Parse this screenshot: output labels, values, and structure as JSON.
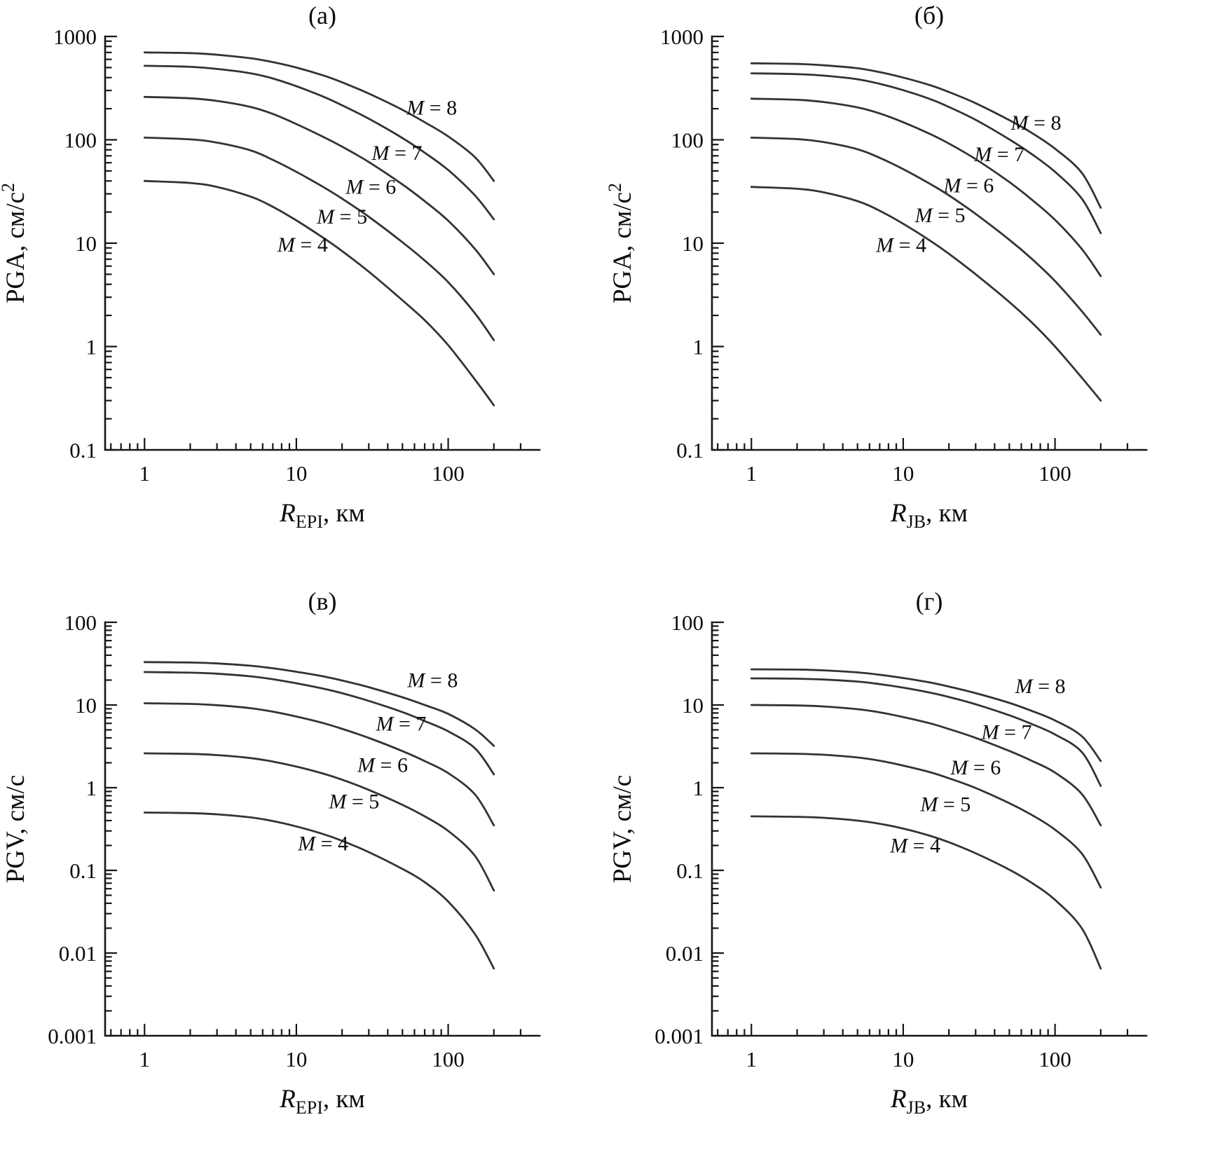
{
  "figure": {
    "background": "#ffffff",
    "axis_color": "#161616",
    "curve_color": "#333333",
    "text_color": "#0c0c0c"
  },
  "chart_data": [
    {
      "id": "a",
      "type": "line",
      "title": "(а)",
      "x_scale": "log",
      "y_scale": "log",
      "grid": false,
      "x_range": [
        0.55,
        400
      ],
      "y_range": [
        0.1,
        1000
      ],
      "x_major_ticks": [
        1,
        10,
        100
      ],
      "y_major_ticks": [
        0.1,
        1,
        10,
        100,
        1000
      ],
      "xlabel": {
        "var": "R",
        "sub": "EPI",
        "rest": ", км"
      },
      "ylabel": {
        "base": "PGA, см/с",
        "sup": "2"
      },
      "x": [
        1,
        2,
        3,
        5,
        7,
        10,
        15,
        20,
        30,
        50,
        70,
        100,
        150,
        200
      ],
      "series": [
        {
          "name": "M = 8",
          "label": {
            "var": "M",
            "rest": " = 8"
          },
          "label_at": [
            78,
            175
          ],
          "values": [
            700,
            690,
            665,
            615,
            565,
            500,
            420,
            360,
            280,
            195,
            148,
            108,
            68,
            40
          ]
        },
        {
          "name": "M = 7",
          "label": {
            "var": "M",
            "rest": " = 7"
          },
          "label_at": [
            46,
            64
          ],
          "values": [
            520,
            508,
            485,
            440,
            392,
            330,
            262,
            216,
            160,
            104,
            75,
            51,
            29,
            17
          ]
        },
        {
          "name": "M = 6",
          "label": {
            "var": "M",
            "rest": " = 6"
          },
          "label_at": [
            31,
            30
          ],
          "values": [
            260,
            252,
            238,
            208,
            178,
            142,
            107,
            86,
            61,
            37,
            25.5,
            16.5,
            8.8,
            5.0
          ]
        },
        {
          "name": "M = 5",
          "label": {
            "var": "M",
            "rest": " = 5"
          },
          "label_at": [
            20,
            15.5
          ],
          "values": [
            105,
            101,
            94,
            79,
            64,
            49,
            35,
            27,
            18,
            10.2,
            6.8,
            4.2,
            2.1,
            1.15
          ]
        },
        {
          "name": "M = 4",
          "label": {
            "var": "M",
            "rest": " = 4"
          },
          "label_at": [
            11,
            8.3
          ],
          "values": [
            40,
            38.2,
            35,
            28.2,
            22.5,
            16.6,
            11.3,
            8.4,
            5.3,
            2.8,
            1.8,
            1.03,
            0.48,
            0.27
          ]
        }
      ]
    },
    {
      "id": "b",
      "type": "line",
      "title": "(б)",
      "x_scale": "log",
      "y_scale": "log",
      "grid": false,
      "x_range": [
        0.55,
        400
      ],
      "y_range": [
        0.1,
        1000
      ],
      "x_major_ticks": [
        1,
        10,
        100
      ],
      "y_major_ticks": [
        0.1,
        1,
        10,
        100,
        1000
      ],
      "xlabel": {
        "var": "R",
        "sub": "JB",
        "rest": ", км"
      },
      "ylabel": {
        "base": "PGA, см/с",
        "sup": "2"
      },
      "x": [
        1,
        2,
        3,
        5,
        7,
        10,
        15,
        20,
        30,
        50,
        70,
        100,
        150,
        200
      ],
      "series": [
        {
          "name": "M = 8",
          "label": {
            "var": "M",
            "rest": " = 8"
          },
          "label_at": [
            75,
            125
          ],
          "values": [
            550,
            542,
            526,
            492,
            452,
            400,
            338,
            290,
            226,
            155,
            117,
            82,
            48,
            22
          ]
        },
        {
          "name": "M = 7",
          "label": {
            "var": "M",
            "rest": " = 7"
          },
          "label_at": [
            43,
            62
          ],
          "values": [
            440,
            432,
            418,
            385,
            348,
            302,
            248,
            208,
            156,
            101,
            73,
            49,
            27,
            12.5
          ]
        },
        {
          "name": "M = 6",
          "label": {
            "var": "M",
            "rest": " = 6"
          },
          "label_at": [
            27,
            31
          ],
          "values": [
            250,
            244,
            232,
            206,
            180,
            148,
            114,
            92,
            65,
            39,
            26.5,
            16.8,
            8.8,
            4.8
          ]
        },
        {
          "name": "M = 5",
          "label": {
            "var": "M",
            "rest": " = 5"
          },
          "label_at": [
            17.5,
            16
          ],
          "values": [
            105,
            101.5,
            95,
            81,
            67,
            52,
            37.5,
            29,
            19.2,
            10.8,
            7.1,
            4.3,
            2.2,
            1.3
          ]
        },
        {
          "name": "M = 4",
          "label": {
            "var": "M",
            "rest": " = 4"
          },
          "label_at": [
            9.7,
            8.2
          ],
          "values": [
            35,
            33.6,
            31,
            25.5,
            20.6,
            15.4,
            10.6,
            7.9,
            5.0,
            2.7,
            1.72,
            1.0,
            0.5,
            0.3
          ]
        }
      ]
    },
    {
      "id": "v",
      "type": "line",
      "title": "(в)",
      "x_scale": "log",
      "y_scale": "log",
      "grid": false,
      "x_range": [
        0.55,
        400
      ],
      "y_range": [
        0.001,
        100
      ],
      "x_major_ticks": [
        1,
        10,
        100
      ],
      "y_major_ticks": [
        0.001,
        0.01,
        0.1,
        1,
        10,
        100
      ],
      "xlabel": {
        "var": "R",
        "sub": "EPI",
        "rest": ", км"
      },
      "ylabel": {
        "base": "PGV, см/с",
        "sup": ""
      },
      "x": [
        1,
        2,
        3,
        5,
        7,
        10,
        15,
        20,
        30,
        50,
        70,
        100,
        150,
        200
      ],
      "series": [
        {
          "name": "M = 8",
          "label": {
            "var": "M",
            "rest": " = 8"
          },
          "label_at": [
            79,
            16.5
          ],
          "values": [
            33,
            32.6,
            31.8,
            29.8,
            27.8,
            25.2,
            22.2,
            19.8,
            16.4,
            12.4,
            10.0,
            7.8,
            5.1,
            3.2
          ]
        },
        {
          "name": "M = 7",
          "label": {
            "var": "M",
            "rest": " = 7"
          },
          "label_at": [
            49,
            4.9
          ],
          "values": [
            25,
            24.6,
            23.9,
            22.2,
            20.5,
            18.3,
            15.8,
            13.9,
            11.2,
            8.2,
            6.4,
            4.8,
            3.0,
            1.45
          ]
        },
        {
          "name": "M = 6",
          "label": {
            "var": "M",
            "rest": " = 6"
          },
          "label_at": [
            37,
            1.55
          ],
          "values": [
            10.5,
            10.3,
            9.95,
            9.15,
            8.3,
            7.25,
            6.05,
            5.15,
            4.0,
            2.77,
            2.1,
            1.5,
            0.83,
            0.35
          ]
        },
        {
          "name": "M = 5",
          "label": {
            "var": "M",
            "rest": " = 5"
          },
          "label_at": [
            24,
            0.56
          ],
          "values": [
            2.6,
            2.56,
            2.48,
            2.28,
            2.07,
            1.8,
            1.48,
            1.25,
            0.94,
            0.62,
            0.45,
            0.3,
            0.15,
            0.057
          ]
        },
        {
          "name": "M = 4",
          "label": {
            "var": "M",
            "rest": " = 4"
          },
          "label_at": [
            15,
            0.175
          ],
          "values": [
            0.5,
            0.492,
            0.476,
            0.437,
            0.395,
            0.34,
            0.275,
            0.228,
            0.166,
            0.104,
            0.072,
            0.042,
            0.017,
            0.0065
          ]
        }
      ]
    },
    {
      "id": "g",
      "type": "line",
      "title": "(г)",
      "x_scale": "log",
      "y_scale": "log",
      "grid": false,
      "x_range": [
        0.55,
        400
      ],
      "y_range": [
        0.001,
        100
      ],
      "x_major_ticks": [
        1,
        10,
        100
      ],
      "y_major_ticks": [
        0.001,
        0.01,
        0.1,
        1,
        10,
        100
      ],
      "xlabel": {
        "var": "R",
        "sub": "JB",
        "rest": ", км"
      },
      "ylabel": {
        "base": "PGV, см/с",
        "sup": ""
      },
      "x": [
        1,
        2,
        3,
        5,
        7,
        10,
        15,
        20,
        30,
        50,
        70,
        100,
        150,
        200
      ],
      "series": [
        {
          "name": "M = 8",
          "label": {
            "var": "M",
            "rest": " = 8"
          },
          "label_at": [
            80,
            14
          ],
          "values": [
            27,
            26.8,
            26.2,
            24.8,
            23.2,
            21.2,
            18.7,
            16.7,
            13.9,
            10.6,
            8.5,
            6.5,
            4.2,
            2.1
          ]
        },
        {
          "name": "M = 7",
          "label": {
            "var": "M",
            "rest": " = 7"
          },
          "label_at": [
            48,
            3.9
          ],
          "values": [
            21,
            20.8,
            20.3,
            19.2,
            17.9,
            16.2,
            14.1,
            12.5,
            10.2,
            7.5,
            5.9,
            4.4,
            2.7,
            1.05
          ]
        },
        {
          "name": "M = 6",
          "label": {
            "var": "M",
            "rest": " = 6"
          },
          "label_at": [
            30,
            1.45
          ],
          "values": [
            10,
            9.87,
            9.6,
            8.9,
            8.15,
            7.15,
            6.0,
            5.12,
            4.0,
            2.78,
            2.12,
            1.52,
            0.84,
            0.35
          ]
        },
        {
          "name": "M = 5",
          "label": {
            "var": "M",
            "rest": " = 5"
          },
          "label_at": [
            19,
            0.52
          ],
          "values": [
            2.6,
            2.57,
            2.5,
            2.32,
            2.12,
            1.85,
            1.54,
            1.3,
            0.99,
            0.65,
            0.47,
            0.31,
            0.16,
            0.062
          ]
        },
        {
          "name": "M = 4",
          "label": {
            "var": "M",
            "rest": " = 4"
          },
          "label_at": [
            12,
            0.165
          ],
          "values": [
            0.45,
            0.444,
            0.432,
            0.4,
            0.366,
            0.32,
            0.262,
            0.219,
            0.161,
            0.102,
            0.071,
            0.044,
            0.02,
            0.0065
          ]
        }
      ]
    }
  ]
}
